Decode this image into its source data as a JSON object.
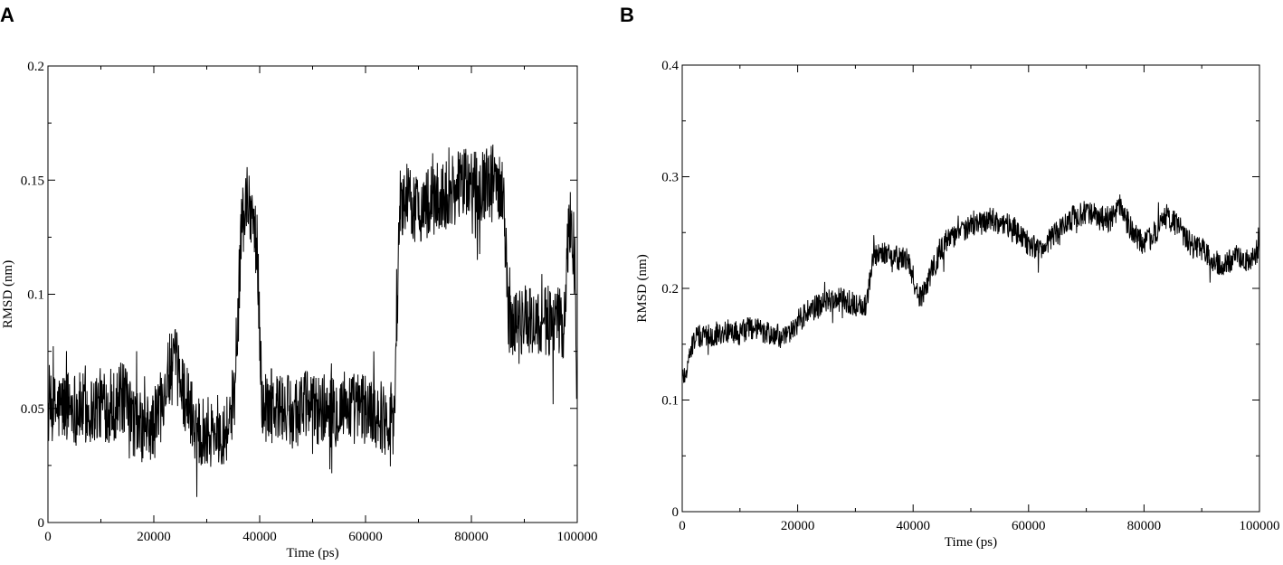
{
  "panels": [
    {
      "letter": "A",
      "chart_data": {
        "type": "line",
        "title": "",
        "xlabel": "Time (ps)",
        "ylabel": "RMSD (nm)",
        "xlim": [
          0,
          100000
        ],
        "ylim": [
          0,
          0.2
        ],
        "xticks": [
          0,
          20000,
          40000,
          60000,
          80000,
          100000
        ],
        "xtick_labels": [
          "0",
          "20000",
          "40000",
          "60000",
          "80000",
          "100000"
        ],
        "yticks": [
          0,
          0.05,
          0.1,
          0.15,
          0.2
        ],
        "ytick_labels": [
          "0",
          "0.05",
          "0.1",
          "0.15",
          "0.2"
        ],
        "grid": false,
        "legend": "none",
        "series": [
          {
            "x": [
              0,
              2000,
              4000,
              6000,
              8000,
              10000,
              12000,
              14000,
              16000,
              18000,
              20000,
              22000,
              24000,
              26000,
              28000,
              30000,
              32000,
              34000,
              35500,
              36500,
              37500,
              38500,
              39500,
              40500,
              42000,
              44000,
              46000,
              48000,
              50000,
              52000,
              54000,
              56000,
              58000,
              60000,
              62000,
              64000,
              65500,
              66500,
              68000,
              70000,
              72000,
              74000,
              76000,
              78000,
              80000,
              82000,
              84000,
              86000,
              87000,
              88000,
              90000,
              92000,
              94000,
              96000,
              97500,
              98500,
              99500,
              100000
            ],
            "y": [
              0.048,
              0.05,
              0.052,
              0.05,
              0.049,
              0.052,
              0.05,
              0.055,
              0.045,
              0.04,
              0.042,
              0.06,
              0.07,
              0.055,
              0.042,
              0.04,
              0.04,
              0.042,
              0.06,
              0.13,
              0.14,
              0.138,
              0.12,
              0.05,
              0.052,
              0.05,
              0.048,
              0.052,
              0.05,
              0.05,
              0.048,
              0.052,
              0.05,
              0.05,
              0.048,
              0.045,
              0.05,
              0.14,
              0.14,
              0.138,
              0.14,
              0.142,
              0.145,
              0.148,
              0.148,
              0.148,
              0.15,
              0.148,
              0.09,
              0.088,
              0.088,
              0.088,
              0.088,
              0.088,
              0.085,
              0.135,
              0.12,
              0.05
            ]
          }
        ]
      }
    },
    {
      "letter": "B",
      "chart_data": {
        "type": "line",
        "title": "",
        "xlabel": "Time (ps)",
        "ylabel": "RMSD (nm)",
        "xlim": [
          0,
          100000
        ],
        "ylim": [
          0,
          0.4
        ],
        "xticks": [
          0,
          20000,
          40000,
          60000,
          80000,
          100000
        ],
        "xtick_labels": [
          "0",
          "20000",
          "40000",
          "60000",
          "80000",
          "100000"
        ],
        "yticks": [
          0,
          0.1,
          0.2,
          0.3,
          0.4
        ],
        "ytick_labels": [
          "0",
          "0.1",
          "0.2",
          "0.3",
          "0.4"
        ],
        "grid": false,
        "legend": "none",
        "series": [
          {
            "x": [
              0,
              1000,
              2000,
              4000,
              6000,
              8000,
              10000,
              12000,
              14000,
              16000,
              18000,
              20000,
              22000,
              24000,
              26000,
              28000,
              30000,
              32000,
              33000,
              35000,
              37000,
              39000,
              40000,
              41000,
              42000,
              44000,
              46000,
              48000,
              50000,
              52000,
              54000,
              56000,
              58000,
              60000,
              62000,
              64000,
              66000,
              68000,
              70000,
              72000,
              74000,
              76000,
              78000,
              80000,
              82000,
              84000,
              86000,
              88000,
              90000,
              92000,
              94000,
              96000,
              98000,
              100000
            ],
            "y": [
              0.12,
              0.13,
              0.155,
              0.158,
              0.16,
              0.162,
              0.16,
              0.165,
              0.16,
              0.158,
              0.155,
              0.17,
              0.18,
              0.185,
              0.19,
              0.19,
              0.185,
              0.185,
              0.23,
              0.232,
              0.228,
              0.225,
              0.21,
              0.19,
              0.2,
              0.225,
              0.245,
              0.25,
              0.255,
              0.26,
              0.262,
              0.258,
              0.25,
              0.24,
              0.235,
              0.245,
              0.255,
              0.265,
              0.268,
              0.265,
              0.26,
              0.275,
              0.25,
              0.24,
              0.25,
              0.265,
              0.255,
              0.24,
              0.235,
              0.225,
              0.22,
              0.23,
              0.225,
              0.235
            ]
          }
        ]
      }
    }
  ]
}
